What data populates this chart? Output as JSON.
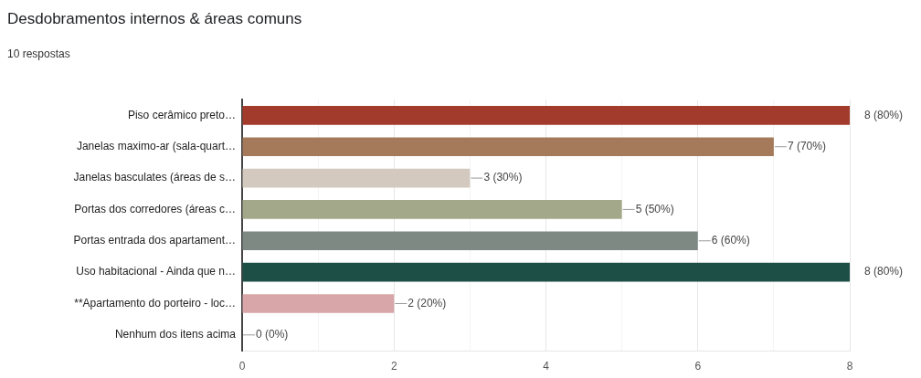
{
  "chart_data": {
    "type": "bar",
    "orientation": "horizontal",
    "title": "Desdobramentos internos & áreas comuns",
    "subtitle": "10 respostas",
    "categories": [
      "Piso cerâmico preto…",
      "Janelas maximo-ar (sala-quart…",
      "Janelas basculates (áreas de s…",
      "Portas dos corredores (áreas c…",
      "Portas entrada dos apartament…",
      "Uso habitacional - Ainda que n…",
      "**Apartamento do porteiro - loc…",
      "Nenhum dos itens acima"
    ],
    "values": [
      8,
      7,
      3,
      5,
      6,
      8,
      2,
      0
    ],
    "colors": [
      "#a33b2d",
      "#a57a5a",
      "#d3c9bf",
      "#a3a88a",
      "#7f8983",
      "#1e4f47",
      "#d8a6a8",
      "#c9c9c9"
    ],
    "value_labels": [
      "8 (80%)",
      "7 (70%)",
      "3 (30%)",
      "5 (50%)",
      "6 (60%)",
      "8 (80%)",
      "2 (20%)",
      "0 (0%)"
    ],
    "xlim": [
      0,
      8
    ],
    "xticks": [
      0,
      {
        "value": 1,
        "label": null
      },
      2,
      {
        "value": 3,
        "label": null
      },
      4,
      {
        "value": 5,
        "label": null
      },
      6,
      {
        "value": 7,
        "label": null
      },
      8
    ],
    "grid": "x"
  }
}
